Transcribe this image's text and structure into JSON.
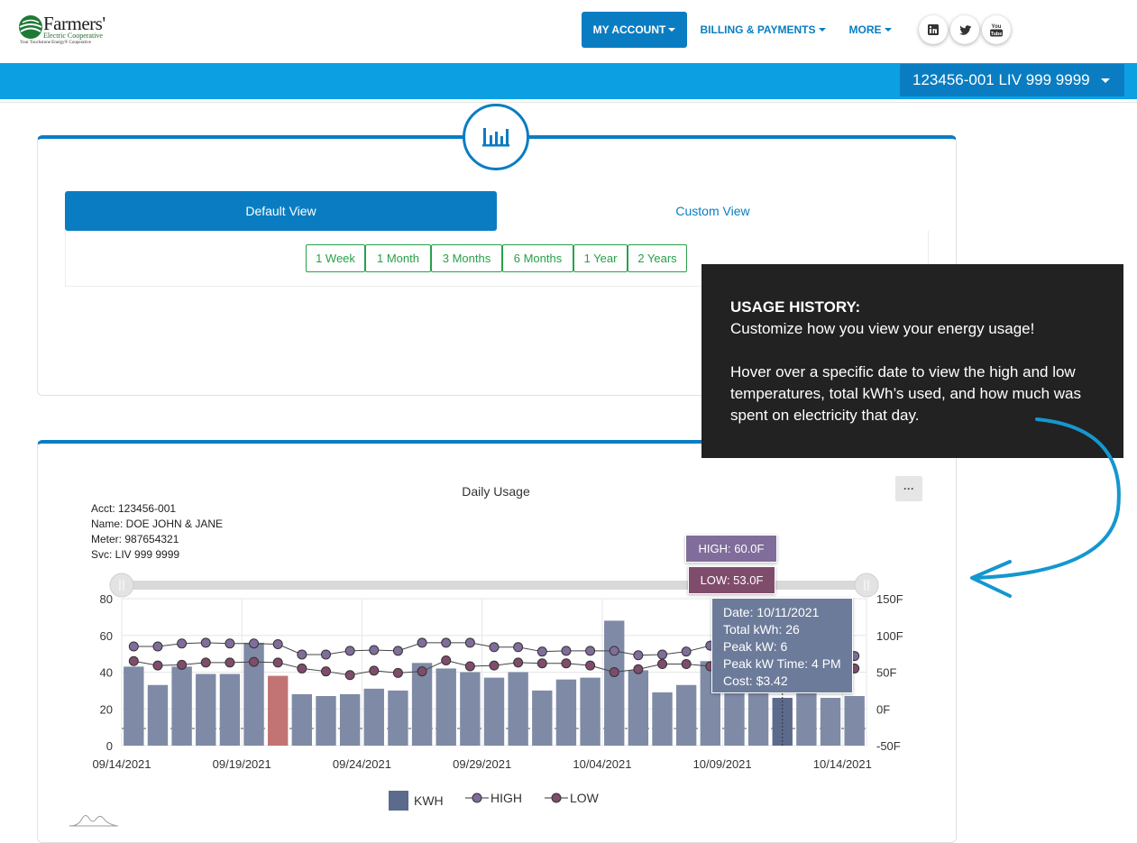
{
  "brand": {
    "name": "Farmers'",
    "subtitle": "Electric Cooperative",
    "tagline": "Your Touchstone Energy® Cooperative"
  },
  "nav": {
    "my_account": "MY ACCOUNT",
    "billing": "BILLING & PAYMENTS",
    "more": "MORE"
  },
  "social": [
    "linkedin-icon",
    "twitter-icon",
    "youtube-icon"
  ],
  "account_selector": "123456-001 LIV 999  9999",
  "view_tabs": {
    "default": "Default View",
    "custom": "Custom View"
  },
  "ranges": [
    "1 Week",
    "1 Month",
    "3 Months",
    "6 Months",
    "1 Year",
    "2 Years"
  ],
  "chart_info": {
    "acct": "Acct:  123456-001",
    "name": "Name:  DOE JOHN & JANE",
    "meter": "Meter:  987654321",
    "svc": "Svc:  LIV 999  9999"
  },
  "tooltip": {
    "high": "HIGH: 60.0F",
    "low": "LOW: 53.0F",
    "date": "Date: 10/11/2021",
    "total": "Total kWh: 26",
    "peak": "Peak kW: 6",
    "peak_time": "Peak kW Time: 4 PM",
    "cost": "Cost: $3.42"
  },
  "callout": {
    "heading": "USAGE HISTORY:",
    "line1": "Customize how you view your energy usage!",
    "body": "Hover over a specific date to view the high and low temperatures, total kWh’s used, and how much was spent on electricity that day."
  },
  "colors": {
    "primary": "#0a7dc2",
    "bar": "#7f8aa6",
    "bar_highlight": "#c27474",
    "bar_selected": "#5c6b8c",
    "high": "#806d9b",
    "low": "#7f4c6c",
    "range_green": "#28a04a"
  },
  "chart_data": {
    "type": "bar",
    "title": "Daily Usage",
    "x_ticks": [
      "09/14/2021",
      "09/19/2021",
      "09/24/2021",
      "09/29/2021",
      "10/04/2021",
      "10/09/2021",
      "10/14/2021"
    ],
    "categories": [
      "09/14/2021",
      "09/15/2021",
      "09/16/2021",
      "09/17/2021",
      "09/18/2021",
      "09/19/2021",
      "09/20/2021",
      "09/21/2021",
      "09/22/2021",
      "09/23/2021",
      "09/24/2021",
      "09/25/2021",
      "09/26/2021",
      "09/27/2021",
      "09/28/2021",
      "09/29/2021",
      "09/30/2021",
      "10/01/2021",
      "10/02/2021",
      "10/03/2021",
      "10/04/2021",
      "10/05/2021",
      "10/06/2021",
      "10/07/2021",
      "10/08/2021",
      "10/09/2021",
      "10/10/2021",
      "10/11/2021",
      "10/12/2021",
      "10/13/2021",
      "10/14/2021"
    ],
    "y_left": {
      "ticks": [
        "0",
        "20",
        "40",
        "60",
        "80"
      ],
      "ylim": [
        0,
        80
      ]
    },
    "y_right": {
      "ticks": [
        "-50F",
        "0F",
        "50F",
        "100F",
        "150F"
      ],
      "ylim": [
        -50,
        150
      ]
    },
    "series": [
      {
        "name": "KWH",
        "axis": "left",
        "values": [
          43,
          33,
          43,
          39,
          39,
          56,
          38,
          28,
          27,
          28,
          31,
          30,
          45,
          42,
          40,
          37,
          40,
          30,
          36,
          37,
          68,
          41,
          29,
          33,
          46,
          44,
          44,
          26,
          32,
          26,
          27
        ]
      },
      {
        "name": "HIGH",
        "axis": "right",
        "values": [
          85,
          85,
          89,
          90,
          89,
          89,
          88,
          74,
          74,
          79,
          80,
          79,
          90,
          90,
          90,
          84,
          84,
          78,
          79,
          79,
          79,
          73,
          74,
          78,
          86,
          86,
          84,
          60,
          78,
          78,
          72
        ]
      },
      {
        "name": "LOW",
        "axis": "right",
        "values": [
          65,
          59,
          60,
          63,
          63,
          64,
          63,
          55,
          51,
          46,
          52,
          49,
          51,
          66,
          58,
          59,
          63,
          62,
          62,
          59,
          50,
          54,
          61,
          61,
          58,
          57,
          54,
          53,
          57,
          56,
          55
        ]
      }
    ],
    "highlight_index": 6,
    "selected_index": 27,
    "legend": [
      "KWH",
      "HIGH",
      "LOW"
    ]
  }
}
